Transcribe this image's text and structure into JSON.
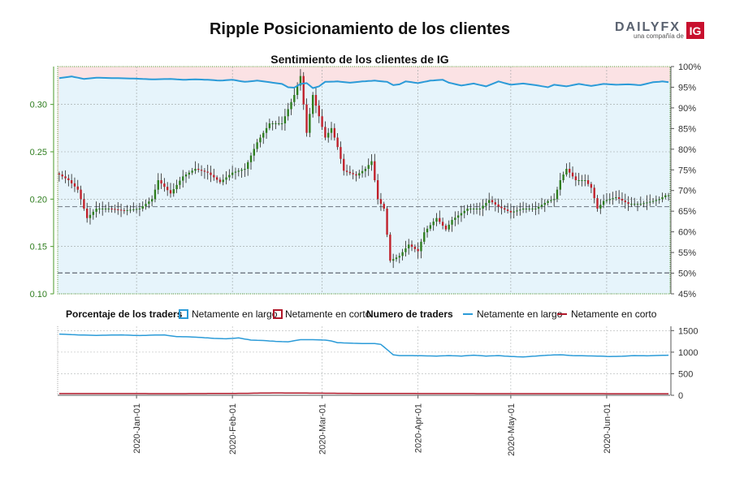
{
  "title": "Ripple Posicionamiento de los clientes",
  "logo": {
    "brand": "DAILYFX",
    "tagline": "una compañía de",
    "badge": "IG"
  },
  "colors": {
    "long": "#2b9bd8",
    "short": "#b0182a",
    "up": "#2e7d1e",
    "down": "#c0202a",
    "long_fill": "#e6f4fb",
    "short_fill": "#fbe2e4",
    "axis_green": "#4a9a2a"
  },
  "chart_data": [
    {
      "type": "candlestick",
      "title": "Sentimiento de los clientes de IG",
      "ylim": [
        0.1,
        0.34
      ],
      "y_ticks": [
        0.1,
        0.15,
        0.2,
        0.25,
        0.3
      ],
      "y_tick_labels": [
        "0.10",
        "0.15",
        "0.20",
        "0.25",
        "0.30"
      ],
      "y2_range_percent": [
        45,
        100
      ],
      "y2_ticks": [
        "45%",
        "50%",
        "55%",
        "60%",
        "65%",
        "70%",
        "75%",
        "80%",
        "85%",
        "90%",
        "95%",
        "100%"
      ],
      "reference_lines": [
        0.192,
        0.122
      ],
      "price_anchors": [
        [
          0,
          0.226
        ],
        [
          3,
          0.22
        ],
        [
          6,
          0.21
        ],
        [
          9,
          0.18
        ],
        [
          12,
          0.19
        ],
        [
          16,
          0.19
        ],
        [
          21,
          0.188
        ],
        [
          26,
          0.19
        ],
        [
          30,
          0.2
        ],
        [
          32,
          0.22
        ],
        [
          36,
          0.206
        ],
        [
          40,
          0.224
        ],
        [
          44,
          0.232
        ],
        [
          48,
          0.228
        ],
        [
          52,
          0.218
        ],
        [
          56,
          0.228
        ],
        [
          60,
          0.232
        ],
        [
          64,
          0.26
        ],
        [
          68,
          0.28
        ],
        [
          72,
          0.28
        ],
        [
          76,
          0.31
        ],
        [
          78,
          0.33
        ],
        [
          80,
          0.27
        ],
        [
          82,
          0.31
        ],
        [
          86,
          0.265
        ],
        [
          88,
          0.275
        ],
        [
          90,
          0.255
        ],
        [
          92,
          0.23
        ],
        [
          96,
          0.225
        ],
        [
          99,
          0.232
        ],
        [
          101,
          0.24
        ],
        [
          103,
          0.2
        ],
        [
          105,
          0.19
        ],
        [
          107,
          0.135
        ],
        [
          110,
          0.14
        ],
        [
          113,
          0.152
        ],
        [
          116,
          0.145
        ],
        [
          118,
          0.165
        ],
        [
          122,
          0.18
        ],
        [
          125,
          0.168
        ],
        [
          127,
          0.178
        ],
        [
          132,
          0.19
        ],
        [
          136,
          0.19
        ],
        [
          139,
          0.199
        ],
        [
          142,
          0.192
        ],
        [
          146,
          0.186
        ],
        [
          150,
          0.19
        ],
        [
          154,
          0.19
        ],
        [
          158,
          0.198
        ],
        [
          160,
          0.2
        ],
        [
          162,
          0.22
        ],
        [
          164,
          0.232
        ],
        [
          167,
          0.22
        ],
        [
          170,
          0.22
        ],
        [
          172,
          0.212
        ],
        [
          174,
          0.19
        ],
        [
          176,
          0.198
        ],
        [
          180,
          0.202
        ],
        [
          184,
          0.195
        ],
        [
          188,
          0.195
        ],
        [
          192,
          0.198
        ],
        [
          194,
          0.2
        ],
        [
          196,
          0.204
        ],
        [
          197,
          0.204
        ]
      ],
      "long_pct_anchors": [
        [
          0,
          97.2
        ],
        [
          4,
          97.6
        ],
        [
          8,
          97.0
        ],
        [
          12,
          97.3
        ],
        [
          18,
          97.2
        ],
        [
          24,
          97.1
        ],
        [
          30,
          96.9
        ],
        [
          36,
          97.0
        ],
        [
          40,
          96.8
        ],
        [
          44,
          96.9
        ],
        [
          48,
          96.8
        ],
        [
          52,
          96.6
        ],
        [
          56,
          96.8
        ],
        [
          60,
          96.3
        ],
        [
          64,
          96.6
        ],
        [
          68,
          96.2
        ],
        [
          72,
          95.8
        ],
        [
          74,
          95.0
        ],
        [
          76,
          94.9
        ],
        [
          78,
          95.8
        ],
        [
          80,
          96.0
        ],
        [
          82,
          94.8
        ],
        [
          84,
          95.2
        ],
        [
          86,
          96.3
        ],
        [
          90,
          96.4
        ],
        [
          94,
          96.1
        ],
        [
          98,
          96.4
        ],
        [
          102,
          96.6
        ],
        [
          106,
          96.3
        ],
        [
          108,
          95.5
        ],
        [
          110,
          95.7
        ],
        [
          112,
          96.4
        ],
        [
          116,
          96.0
        ],
        [
          120,
          96.6
        ],
        [
          124,
          96.8
        ],
        [
          126,
          96.1
        ],
        [
          130,
          95.4
        ],
        [
          134,
          95.9
        ],
        [
          138,
          95.2
        ],
        [
          142,
          96.4
        ],
        [
          146,
          95.6
        ],
        [
          150,
          95.9
        ],
        [
          154,
          95.5
        ],
        [
          158,
          95.0
        ],
        [
          160,
          95.6
        ],
        [
          164,
          95.2
        ],
        [
          168,
          95.8
        ],
        [
          172,
          95.3
        ],
        [
          176,
          95.8
        ],
        [
          180,
          95.6
        ],
        [
          184,
          95.7
        ],
        [
          188,
          95.5
        ],
        [
          192,
          96.2
        ],
        [
          195,
          96.4
        ],
        [
          197,
          96.2
        ]
      ],
      "x_tick_labels": [
        "2020-Jan-01",
        "2020-Feb-01",
        "2020-Mar-01",
        "2020-Apr-01",
        "2020-May-01",
        "2020-Jun-01"
      ],
      "x_tick_index": [
        25,
        56,
        85,
        116,
        146,
        177
      ]
    },
    {
      "type": "line",
      "title": "Numero de traders",
      "ylim": [
        0,
        1600
      ],
      "y_ticks": [
        0,
        500,
        1000,
        1500
      ],
      "y_tick_labels": [
        "0",
        "500",
        "1000",
        "1500"
      ],
      "series": [
        {
          "name": "Netamente en largo",
          "anchors": [
            [
              0,
              1420
            ],
            [
              6,
              1400
            ],
            [
              12,
              1390
            ],
            [
              20,
              1400
            ],
            [
              26,
              1385
            ],
            [
              30,
              1395
            ],
            [
              34,
              1400
            ],
            [
              38,
              1360
            ],
            [
              42,
              1355
            ],
            [
              46,
              1340
            ],
            [
              50,
              1320
            ],
            [
              54,
              1310
            ],
            [
              58,
              1330
            ],
            [
              62,
              1280
            ],
            [
              66,
              1270
            ],
            [
              70,
              1250
            ],
            [
              74,
              1240
            ],
            [
              78,
              1290
            ],
            [
              82,
              1290
            ],
            [
              86,
              1280
            ],
            [
              88,
              1260
            ],
            [
              90,
              1220
            ],
            [
              94,
              1210
            ],
            [
              98,
              1200
            ],
            [
              102,
              1200
            ],
            [
              104,
              1180
            ],
            [
              106,
              1060
            ],
            [
              108,
              940
            ],
            [
              110,
              920
            ],
            [
              114,
              920
            ],
            [
              118,
              915
            ],
            [
              122,
              910
            ],
            [
              126,
              920
            ],
            [
              130,
              910
            ],
            [
              134,
              930
            ],
            [
              138,
              910
            ],
            [
              142,
              920
            ],
            [
              146,
              900
            ],
            [
              150,
              890
            ],
            [
              154,
              910
            ],
            [
              158,
              930
            ],
            [
              162,
              940
            ],
            [
              166,
              920
            ],
            [
              170,
              915
            ],
            [
              174,
              910
            ],
            [
              178,
              900
            ],
            [
              182,
              905
            ],
            [
              186,
              920
            ],
            [
              190,
              915
            ],
            [
              194,
              925
            ],
            [
              197,
              930
            ]
          ]
        },
        {
          "name": "Netamente en corto",
          "anchors": [
            [
              0,
              40
            ],
            [
              40,
              38
            ],
            [
              60,
              45
            ],
            [
              70,
              55
            ],
            [
              80,
              50
            ],
            [
              100,
              42
            ],
            [
              140,
              38
            ],
            [
              197,
              36
            ]
          ]
        }
      ]
    }
  ],
  "legend": {
    "pct_label": "Porcentaje de los traders",
    "pct_long": "Netamente en largo",
    "pct_short": "Netamente en corto",
    "num_label": "Numero de traders",
    "num_long": "Netamente en largo",
    "num_short": "Netamente en corto"
  }
}
